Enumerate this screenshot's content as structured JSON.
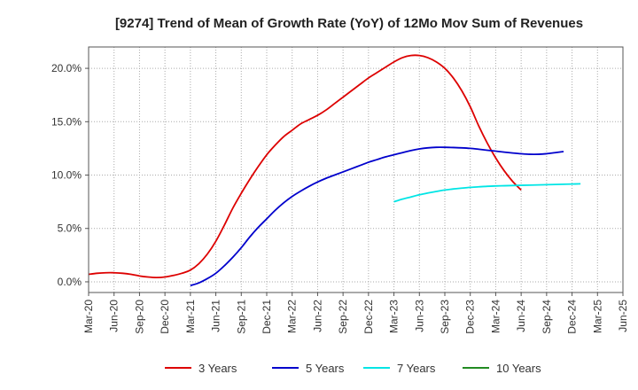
{
  "chart_data": {
    "type": "line",
    "title": "[9274]  Trend of Mean of Growth Rate (YoY) of 12Mo Mov Sum of Revenues",
    "xlabel": "",
    "ylabel": "",
    "x_ticks": [
      "Mar-20",
      "Jun-20",
      "Sep-20",
      "Dec-20",
      "Mar-21",
      "Jun-21",
      "Sep-21",
      "Dec-21",
      "Mar-22",
      "Jun-22",
      "Sep-22",
      "Dec-22",
      "Mar-23",
      "Jun-23",
      "Sep-23",
      "Dec-23",
      "Mar-24",
      "Jun-24",
      "Sep-24",
      "Dec-24",
      "Mar-25",
      "Jun-25"
    ],
    "y_ticks": [
      0,
      5,
      10,
      15,
      20
    ],
    "y_tick_labels": [
      "0.0%",
      "5.0%",
      "10.0%",
      "15.0%",
      "20.0%"
    ],
    "ylim": [
      -1.0,
      22.0
    ],
    "grid": true,
    "legend_position": "bottom",
    "series": [
      {
        "name": "3 Years",
        "color": "#dd0000",
        "points": [
          [
            "Mar-20",
            0.7
          ],
          [
            "Apr-20",
            0.8
          ],
          [
            "May-20",
            0.85
          ],
          [
            "Jun-20",
            0.85
          ],
          [
            "Jul-20",
            0.8
          ],
          [
            "Aug-20",
            0.7
          ],
          [
            "Sep-20",
            0.55
          ],
          [
            "Oct-20",
            0.45
          ],
          [
            "Nov-20",
            0.4
          ],
          [
            "Dec-20",
            0.45
          ],
          [
            "Jan-21",
            0.6
          ],
          [
            "Feb-21",
            0.8
          ],
          [
            "Mar-21",
            1.1
          ],
          [
            "Apr-21",
            1.7
          ],
          [
            "May-21",
            2.6
          ],
          [
            "Jun-21",
            3.8
          ],
          [
            "Jul-21",
            5.3
          ],
          [
            "Aug-21",
            6.9
          ],
          [
            "Sep-21",
            8.3
          ],
          [
            "Oct-21",
            9.6
          ],
          [
            "Nov-21",
            10.8
          ],
          [
            "Dec-21",
            11.9
          ],
          [
            "Jan-22",
            12.8
          ],
          [
            "Feb-22",
            13.6
          ],
          [
            "Mar-22",
            14.2
          ],
          [
            "Apr-22",
            14.8
          ],
          [
            "May-22",
            15.2
          ],
          [
            "Jun-22",
            15.6
          ],
          [
            "Jul-22",
            16.1
          ],
          [
            "Aug-22",
            16.7
          ],
          [
            "Sep-22",
            17.3
          ],
          [
            "Oct-22",
            17.9
          ],
          [
            "Nov-22",
            18.5
          ],
          [
            "Dec-22",
            19.1
          ],
          [
            "Jan-23",
            19.6
          ],
          [
            "Feb-23",
            20.1
          ],
          [
            "Mar-23",
            20.6
          ],
          [
            "Apr-23",
            21.0
          ],
          [
            "May-23",
            21.2
          ],
          [
            "Jun-23",
            21.2
          ],
          [
            "Jul-23",
            21.0
          ],
          [
            "Aug-23",
            20.6
          ],
          [
            "Sep-23",
            20.0
          ],
          [
            "Oct-23",
            19.1
          ],
          [
            "Nov-23",
            17.9
          ],
          [
            "Dec-23",
            16.4
          ],
          [
            "Jan-24",
            14.6
          ],
          [
            "Feb-24",
            13.0
          ],
          [
            "Mar-24",
            11.6
          ],
          [
            "Apr-24",
            10.4
          ],
          [
            "May-24",
            9.4
          ],
          [
            "Jun-24",
            8.6
          ]
        ],
        "start_index": 0
      },
      {
        "name": "5 Years",
        "color": "#0000cc",
        "points": [],
        "values": [
          -0.35,
          -0.1,
          0.3,
          0.8,
          1.5,
          2.3,
          3.2,
          4.2,
          5.1,
          5.9,
          6.7,
          7.4,
          8.0,
          8.5,
          8.95,
          9.35,
          9.7,
          10.0,
          10.3,
          10.6,
          10.9,
          11.2,
          11.45,
          11.7,
          11.9,
          12.1,
          12.3,
          12.45,
          12.55,
          12.6,
          12.6,
          12.58,
          12.55,
          12.5,
          12.42,
          12.33,
          12.24,
          12.15,
          12.07,
          12.0,
          11.95,
          11.95,
          12.0,
          12.1,
          12.2
        ],
        "start_index": 12
      },
      {
        "name": "7 Years",
        "color": "#00e5e5",
        "points": [],
        "values": [
          7.5,
          7.75,
          7.95,
          8.15,
          8.32,
          8.47,
          8.6,
          8.7,
          8.78,
          8.85,
          8.9,
          8.95,
          8.98,
          9.0,
          9.02,
          9.04,
          9.06,
          9.08,
          9.1,
          9.12,
          9.14,
          9.16,
          9.18
        ],
        "start_index": 36
      },
      {
        "name": "10 Years",
        "color": "#228b22",
        "points": [],
        "values": [],
        "start_index": 0
      }
    ]
  }
}
